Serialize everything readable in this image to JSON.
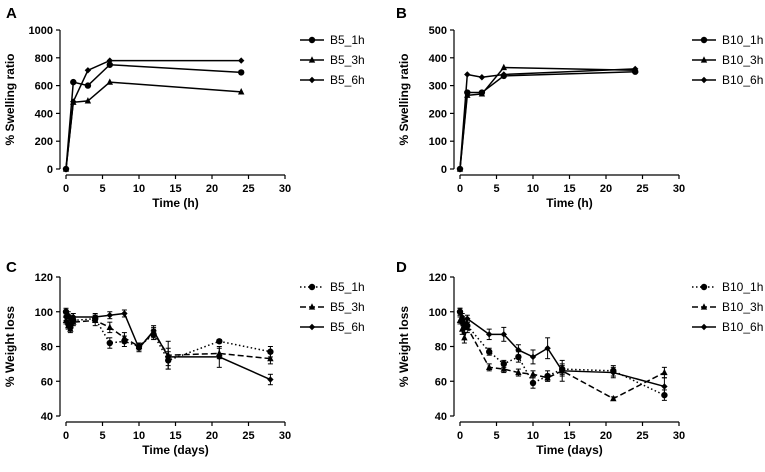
{
  "chart_data": [
    {
      "panel": "A",
      "type": "line",
      "xlabel": "Time (h)",
      "ylabel": "% Swelling ratio",
      "xlim": [
        0,
        30
      ],
      "ylim": [
        0,
        1000
      ],
      "xticks": [
        0,
        5,
        10,
        15,
        20,
        25,
        30
      ],
      "yticks": [
        0,
        200,
        400,
        600,
        800,
        1000
      ],
      "series": [
        {
          "name": "B5_1h",
          "marker": "circle",
          "dash": "solid",
          "x": [
            0,
            1,
            3,
            6,
            24
          ],
          "y": [
            0,
            625,
            600,
            750,
            695
          ]
        },
        {
          "name": "B5_3h",
          "marker": "triangle",
          "dash": "solid",
          "x": [
            0,
            1,
            3,
            6,
            24
          ],
          "y": [
            0,
            480,
            490,
            625,
            555
          ]
        },
        {
          "name": "B5_6h",
          "marker": "diamond",
          "dash": "solid",
          "x": [
            0,
            1,
            3,
            6,
            24
          ],
          "y": [
            0,
            485,
            710,
            780,
            780
          ]
        }
      ]
    },
    {
      "panel": "B",
      "type": "line",
      "xlabel": "Time (h)",
      "ylabel": "% Swelling ratio",
      "xlim": [
        0,
        30
      ],
      "ylim": [
        0,
        500
      ],
      "xticks": [
        0,
        5,
        10,
        15,
        20,
        25,
        30
      ],
      "yticks": [
        0,
        100,
        200,
        300,
        400,
        500
      ],
      "series": [
        {
          "name": "B10_1h",
          "marker": "circle",
          "dash": "solid",
          "x": [
            0,
            1,
            3,
            6,
            24
          ],
          "y": [
            0,
            275,
            275,
            335,
            350
          ]
        },
        {
          "name": "B10_3h",
          "marker": "triangle",
          "dash": "solid",
          "x": [
            0,
            1,
            3,
            6,
            24
          ],
          "y": [
            0,
            265,
            270,
            365,
            355
          ]
        },
        {
          "name": "B10_6h",
          "marker": "diamond",
          "dash": "solid",
          "x": [
            0,
            1,
            3,
            6,
            24
          ],
          "y": [
            0,
            340,
            330,
            340,
            360
          ]
        }
      ]
    },
    {
      "panel": "C",
      "type": "line",
      "xlabel": "Time (days)",
      "ylabel": "% Weight loss",
      "xlim": [
        0,
        30
      ],
      "ylim": [
        40,
        120
      ],
      "xticks": [
        0,
        5,
        10,
        15,
        20,
        25,
        30
      ],
      "yticks": [
        40,
        60,
        80,
        100,
        120
      ],
      "series": [
        {
          "name": "B5_1h",
          "marker": "circle",
          "dash": "dotted",
          "x": [
            0,
            0.3,
            0.6,
            1,
            4,
            6,
            8,
            10,
            12,
            14,
            21,
            28
          ],
          "y": [
            100,
            93,
            91,
            95,
            96,
            82,
            83,
            80,
            87,
            72,
            83,
            77
          ],
          "err": [
            2,
            2,
            2,
            2,
            2,
            3,
            3,
            2,
            3,
            5,
            1,
            3
          ]
        },
        {
          "name": "B5_3h",
          "marker": "triangle",
          "dash": "dashed",
          "x": [
            0,
            0.3,
            0.6,
            1,
            4,
            6,
            8,
            10,
            12,
            14,
            21,
            28
          ],
          "y": [
            95,
            92,
            90,
            94,
            95,
            91,
            85,
            80,
            88,
            75,
            76,
            73
          ],
          "err": [
            2,
            2,
            2,
            2,
            3,
            3,
            3,
            2,
            3,
            8,
            3,
            3
          ]
        },
        {
          "name": "B5_6h",
          "marker": "diamond",
          "dash": "solid",
          "x": [
            0,
            0.3,
            0.6,
            1,
            4,
            6,
            8,
            10,
            12,
            14,
            21,
            28
          ],
          "y": [
            97,
            98,
            96,
            97,
            97,
            98,
            99,
            79,
            89,
            74,
            74,
            61
          ],
          "err": [
            2,
            2,
            2,
            2,
            2,
            2,
            2,
            2,
            3,
            5,
            6,
            3
          ]
        }
      ]
    },
    {
      "panel": "D",
      "type": "line",
      "xlabel": "Time (days)",
      "ylabel": "% Weight loss",
      "xlim": [
        0,
        30
      ],
      "ylim": [
        40,
        120
      ],
      "xticks": [
        0,
        5,
        10,
        15,
        20,
        25,
        30
      ],
      "yticks": [
        40,
        60,
        80,
        100,
        120
      ],
      "series": [
        {
          "name": "B10_1h",
          "marker": "circle",
          "dash": "dotted",
          "x": [
            0,
            0.3,
            0.6,
            1,
            4,
            6,
            8,
            10,
            12,
            14,
            21,
            28
          ],
          "y": [
            100,
            95,
            91,
            92,
            77,
            70,
            74,
            59,
            63,
            67,
            66,
            52
          ],
          "err": [
            2,
            2,
            3,
            2,
            2,
            2,
            3,
            3,
            3,
            3,
            3,
            3
          ]
        },
        {
          "name": "B10_3h",
          "marker": "triangle",
          "dash": "dashed",
          "x": [
            0,
            0.3,
            0.6,
            1,
            4,
            6,
            8,
            10,
            12,
            14,
            21,
            28
          ],
          "y": [
            95,
            90,
            85,
            91,
            68,
            67,
            65,
            64,
            62,
            66,
            50,
            65
          ],
          "err": [
            2,
            3,
            3,
            3,
            2,
            2,
            2,
            2,
            2,
            3,
            1,
            3
          ]
        },
        {
          "name": "B10_6h",
          "marker": "diamond",
          "dash": "solid",
          "x": [
            0,
            0.3,
            0.6,
            1,
            4,
            6,
            8,
            10,
            12,
            14,
            21,
            28
          ],
          "y": [
            100,
            97,
            92,
            96,
            87,
            87,
            78,
            74,
            79,
            66,
            65,
            57
          ],
          "err": [
            2,
            2,
            2,
            2,
            3,
            4,
            3,
            4,
            6,
            6,
            3,
            5
          ]
        }
      ]
    }
  ]
}
